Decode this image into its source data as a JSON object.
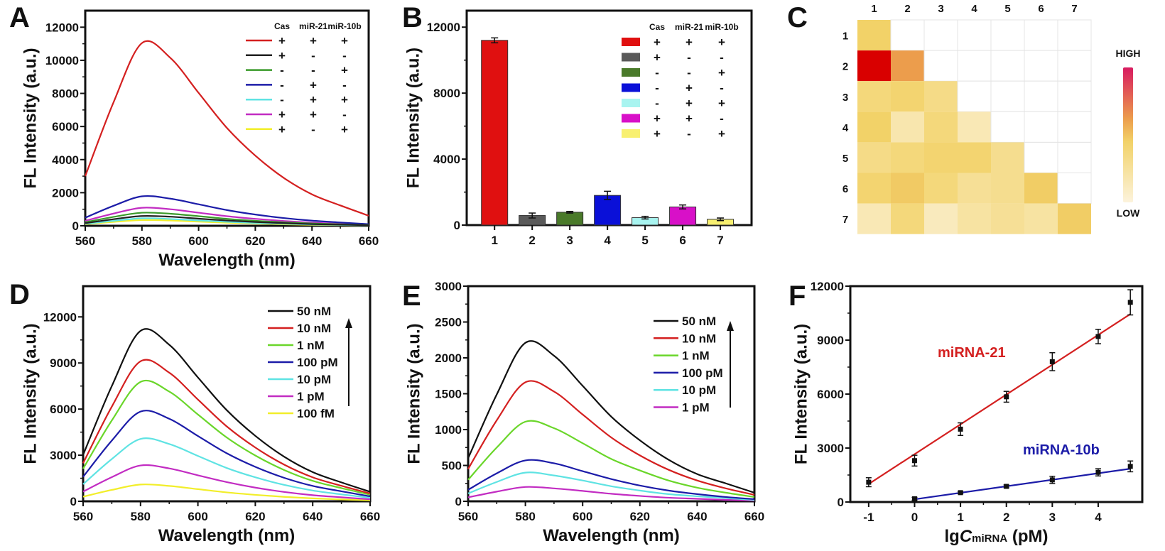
{
  "panels": [
    "A",
    "B",
    "C",
    "D",
    "E",
    "F"
  ],
  "chart_data": [
    {
      "panel": "A",
      "type": "line",
      "title": "",
      "xlabel": "Wavelength (nm)",
      "ylabel": "FL Intensity (a.u.)",
      "xlim": [
        560,
        660
      ],
      "ylim": [
        0,
        13000
      ],
      "xticks": [
        560,
        580,
        600,
        620,
        640,
        660
      ],
      "yticks": [
        0,
        2000,
        4000,
        6000,
        8000,
        10000,
        12000
      ],
      "grid": false,
      "legend": {
        "placement": "top-right",
        "columns": [
          "Cas",
          "miR-21",
          "miR-10b"
        ]
      },
      "x": [
        560,
        570,
        580,
        590,
        600,
        610,
        620,
        630,
        640,
        650,
        660
      ],
      "series": [
        {
          "color": "#d42020",
          "conditions": [
            "+",
            "+",
            "+"
          ],
          "values": [
            3000,
            7470,
            11040,
            10150,
            8030,
            5910,
            4240,
            2900,
            1900,
            1230,
            610
          ]
        },
        {
          "color": "#222222",
          "conditions": [
            "+",
            "-",
            "-"
          ],
          "values": [
            160,
            400,
            590,
            550,
            430,
            320,
            230,
            160,
            100,
            70,
            30
          ]
        },
        {
          "color": "#3a9a2a",
          "conditions": [
            "-",
            "-",
            "+"
          ],
          "values": [
            220,
            540,
            790,
            730,
            580,
            420,
            300,
            210,
            140,
            90,
            45
          ]
        },
        {
          "color": "#1c1ca8",
          "conditions": [
            "-",
            "+",
            "-"
          ],
          "values": [
            490,
            1210,
            1780,
            1640,
            1300,
            950,
            680,
            470,
            310,
            200,
            100
          ]
        },
        {
          "color": "#5fe3e3",
          "conditions": [
            "-",
            "+",
            "+"
          ],
          "values": [
            120,
            300,
            450,
            410,
            320,
            240,
            170,
            120,
            80,
            50,
            25
          ]
        },
        {
          "color": "#c22cc2",
          "conditions": [
            "+",
            "+",
            "-"
          ],
          "values": [
            300,
            740,
            1090,
            1000,
            790,
            580,
            420,
            290,
            190,
            120,
            60
          ]
        },
        {
          "color": "#f2ee2a",
          "conditions": [
            "+",
            "-",
            "+"
          ],
          "values": [
            95,
            235,
            345,
            320,
            250,
            185,
            135,
            90,
            60,
            40,
            20
          ]
        }
      ]
    },
    {
      "panel": "B",
      "type": "bar",
      "title": "",
      "xlabel": "",
      "ylabel": "FL Intensity (a.u.)",
      "ylim": [
        0,
        13000
      ],
      "yticks": [
        0,
        4000,
        8000,
        12000
      ],
      "grid": false,
      "categories": [
        "1",
        "2",
        "3",
        "4",
        "5",
        "6",
        "7"
      ],
      "values": [
        11200,
        580,
        780,
        1800,
        450,
        1100,
        350
      ],
      "errors": [
        150,
        150,
        50,
        250,
        80,
        120,
        80
      ],
      "colors": [
        "#e01010",
        "#5a5a5a",
        "#4a7a2a",
        "#0a10d8",
        "#a8f4f0",
        "#d810c8",
        "#f8f070"
      ],
      "legend": {
        "placement": "top-right",
        "columns": [
          "Cas",
          "miR-21",
          "miR-10b"
        ],
        "rows": [
          [
            "+",
            "+",
            "+"
          ],
          [
            "+",
            "-",
            "-"
          ],
          [
            "-",
            "-",
            "+"
          ],
          [
            "-",
            "+",
            "-"
          ],
          [
            "-",
            "+",
            "+"
          ],
          [
            "+",
            "+",
            "-"
          ],
          [
            "+",
            "-",
            "+"
          ]
        ]
      }
    },
    {
      "panel": "C",
      "type": "heatmap",
      "title": "",
      "col_labels": [
        "1",
        "2",
        "3",
        "4",
        "5",
        "6",
        "7"
      ],
      "row_labels": [
        "1",
        "2",
        "3",
        "4",
        "5",
        "6",
        "7"
      ],
      "values": [
        [
          0.3,
          null,
          null,
          null,
          null,
          null,
          null
        ],
        [
          1.0,
          0.5,
          null,
          null,
          null,
          null,
          null
        ],
        [
          0.25,
          0.28,
          0.22,
          null,
          null,
          null,
          null
        ],
        [
          0.3,
          0.12,
          0.25,
          0.1,
          null,
          null,
          null
        ],
        [
          0.22,
          0.25,
          0.28,
          0.28,
          0.2,
          null,
          null
        ],
        [
          0.28,
          0.33,
          0.25,
          0.18,
          0.2,
          0.32,
          null
        ],
        [
          0.1,
          0.25,
          0.08,
          0.15,
          0.18,
          0.15,
          0.32
        ]
      ],
      "color_scale": [
        {
          "stop": 0,
          "color": "#fcf3dc"
        },
        {
          "stop": 0.3,
          "color": "#f2d268"
        },
        {
          "stop": 0.5,
          "color": "#ec9d4c"
        },
        {
          "stop": 1,
          "color": "#d90000"
        }
      ],
      "colorbar": {
        "high_label": "HIGH",
        "low_label": "LOW",
        "top_color": "#d81b60"
      }
    },
    {
      "panel": "D",
      "type": "line",
      "title": "",
      "xlabel": "Wavelength (nm)",
      "ylabel": "FL Intensity (a.u.)",
      "xlim": [
        560,
        660
      ],
      "ylim": [
        0,
        14000
      ],
      "xticks": [
        560,
        580,
        600,
        620,
        640,
        660
      ],
      "yticks": [
        0,
        3000,
        6000,
        9000,
        12000
      ],
      "grid": false,
      "legend": {
        "placement": "top-right",
        "arrow": "up"
      },
      "x": [
        560,
        570,
        580,
        590,
        600,
        610,
        620,
        630,
        640,
        650,
        660
      ],
      "series": [
        {
          "name": "50 nM",
          "color": "#111111",
          "values": [
            3020,
            7500,
            11090,
            10190,
            8060,
            5940,
            4260,
            2910,
            1900,
            1230,
            620
          ]
        },
        {
          "name": "10 nM",
          "color": "#d42020",
          "values": [
            2480,
            6160,
            9110,
            8370,
            6620,
            4880,
            3500,
            2390,
            1560,
            1010,
            510
          ]
        },
        {
          "name": "1 nM",
          "color": "#6ad62a",
          "values": [
            2120,
            5260,
            7770,
            7140,
            5650,
            4160,
            2980,
            2040,
            1330,
            860,
            430
          ]
        },
        {
          "name": "100 pM",
          "color": "#1c1ca8",
          "values": [
            1590,
            3950,
            5840,
            5370,
            4250,
            3130,
            2240,
            1530,
            1000,
            650,
            320
          ]
        },
        {
          "name": "10 pM",
          "color": "#5fe3e3",
          "values": [
            1110,
            2750,
            4060,
            3730,
            2950,
            2170,
            1560,
            1070,
            700,
            450,
            230
          ]
        },
        {
          "name": "1 pM",
          "color": "#c22cc2",
          "values": [
            630,
            1570,
            2330,
            2140,
            1690,
            1250,
            890,
            610,
            400,
            260,
            130
          ]
        },
        {
          "name": "100 fM",
          "color": "#f2ee2a",
          "values": [
            300,
            740,
            1090,
            1000,
            790,
            580,
            420,
            290,
            190,
            120,
            60
          ]
        }
      ]
    },
    {
      "panel": "E",
      "type": "line",
      "title": "",
      "xlabel": "Wavelength (nm)",
      "ylabel": "FL Intensity (a.u.)",
      "xlim": [
        560,
        660
      ],
      "ylim": [
        0,
        3000
      ],
      "xticks": [
        560,
        580,
        600,
        620,
        640,
        660
      ],
      "yticks": [
        0,
        500,
        1000,
        1500,
        2000,
        2500,
        3000
      ],
      "grid": false,
      "legend": {
        "placement": "top-right",
        "arrow": "up"
      },
      "x": [
        560,
        570,
        580,
        590,
        600,
        610,
        620,
        630,
        640,
        650,
        660
      ],
      "series": [
        {
          "name": "50 nM",
          "color": "#111111",
          "values": [
            600,
            1490,
            2210,
            2030,
            1610,
            1180,
            850,
            580,
            380,
            250,
            120
          ]
        },
        {
          "name": "10 nM",
          "color": "#d42020",
          "values": [
            450,
            1130,
            1660,
            1530,
            1210,
            890,
            640,
            440,
            290,
            180,
            90
          ]
        },
        {
          "name": "1 nM",
          "color": "#6ad62a",
          "values": [
            300,
            750,
            1110,
            1020,
            810,
            590,
            430,
            290,
            190,
            120,
            60
          ]
        },
        {
          "name": "100 pM",
          "color": "#1c1ca8",
          "values": [
            160,
            390,
            570,
            530,
            420,
            310,
            220,
            150,
            100,
            60,
            30
          ]
        },
        {
          "name": "10 pM",
          "color": "#5fe3e3",
          "values": [
            110,
            270,
            400,
            360,
            290,
            210,
            150,
            100,
            70,
            45,
            20
          ]
        },
        {
          "name": "1 pM",
          "color": "#c22cc2",
          "values": [
            55,
            135,
            200,
            180,
            145,
            105,
            75,
            50,
            35,
            20,
            10
          ]
        }
      ]
    },
    {
      "panel": "F",
      "type": "scatter",
      "title": "",
      "xlabel_parts": {
        "prefix": "lg",
        "symbol": "C",
        "subscript": "miRNA",
        "unit": " (pM)"
      },
      "ylabel": "FL Intensity (a.u.)",
      "xlim": [
        -1.4,
        4.96
      ],
      "ylim": [
        0,
        12000
      ],
      "xticks": [
        -1,
        0,
        1,
        2,
        3,
        4
      ],
      "yticks": [
        0,
        3000,
        6000,
        9000,
        12000
      ],
      "grid": false,
      "series": [
        {
          "name": "miRNA-21",
          "color": "#d42020",
          "marker_color": "#111111",
          "x": [
            -1,
            0,
            1,
            2,
            3,
            4,
            4.7
          ],
          "y": [
            1100,
            2300,
            4050,
            5850,
            7800,
            9200,
            11100
          ],
          "errors": [
            250,
            300,
            350,
            300,
            500,
            400,
            700
          ],
          "fit": [
            [
              -1,
              1000
            ],
            [
              4.7,
              10450
            ]
          ]
        },
        {
          "name": "miRNA-10b",
          "color": "#1c1ca8",
          "marker_color": "#111111",
          "x": [
            0,
            1,
            2,
            3,
            4,
            4.7
          ],
          "y": [
            180,
            520,
            870,
            1230,
            1650,
            1980
          ],
          "errors": [
            80,
            60,
            80,
            200,
            200,
            300
          ],
          "fit": [
            [
              0,
              150
            ],
            [
              4.7,
              1850
            ]
          ]
        }
      ]
    }
  ]
}
